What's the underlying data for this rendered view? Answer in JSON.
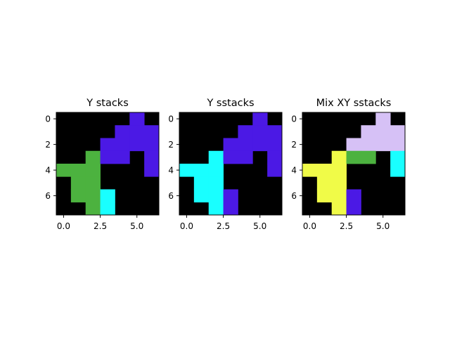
{
  "colors": {
    "background": "#000000",
    "green": "#4cb23f",
    "cyan": "#19ffff",
    "purple": "#4b19e5",
    "lavender": "#d6c1f6",
    "yellow": "#f0fb48"
  },
  "chart_data": [
    {
      "type": "heatmap",
      "title": "Y stacks",
      "xticks": [
        "0.0",
        "2.5",
        "5.0"
      ],
      "yticks": [
        "0",
        "2",
        "4",
        "6"
      ],
      "xlim": [
        -0.5,
        6.5
      ],
      "ylim": [
        7.5,
        -0.5
      ],
      "grid": false,
      "cells": [
        [
          0,
          0,
          0,
          0,
          0,
          "purple",
          0
        ],
        [
          0,
          0,
          0,
          0,
          "purple",
          "purple",
          "purple"
        ],
        [
          0,
          0,
          0,
          "purple",
          "purple",
          "purple",
          "purple"
        ],
        [
          0,
          0,
          "green",
          "purple",
          "purple",
          0,
          "purple"
        ],
        [
          "green",
          "green",
          "green",
          0,
          0,
          0,
          "purple"
        ],
        [
          0,
          "green",
          "green",
          0,
          0,
          0,
          0
        ],
        [
          0,
          "green",
          "green",
          "cyan",
          0,
          0,
          0
        ],
        [
          0,
          0,
          "green",
          "cyan",
          0,
          0,
          0
        ]
      ]
    },
    {
      "type": "heatmap",
      "title": "Y sstacks",
      "xticks": [
        "0.0",
        "2.5",
        "5.0"
      ],
      "yticks": [
        "0",
        "2",
        "4",
        "6"
      ],
      "xlim": [
        -0.5,
        6.5
      ],
      "ylim": [
        7.5,
        -0.5
      ],
      "grid": false,
      "cells": [
        [
          0,
          0,
          0,
          0,
          0,
          "purple",
          0
        ],
        [
          0,
          0,
          0,
          0,
          "purple",
          "purple",
          "purple"
        ],
        [
          0,
          0,
          0,
          "purple",
          "purple",
          "purple",
          "purple"
        ],
        [
          0,
          0,
          "cyan",
          "purple",
          "purple",
          0,
          "purple"
        ],
        [
          "cyan",
          "cyan",
          "cyan",
          0,
          0,
          0,
          "purple"
        ],
        [
          0,
          "cyan",
          "cyan",
          0,
          0,
          0,
          0
        ],
        [
          0,
          "cyan",
          "cyan",
          "purple",
          0,
          0,
          0
        ],
        [
          0,
          0,
          "cyan",
          "purple",
          0,
          0,
          0
        ]
      ]
    },
    {
      "type": "heatmap",
      "title": "Mix XY sstacks",
      "xticks": [
        "0.0",
        "2.5",
        "5.0"
      ],
      "yticks": [
        "0",
        "2",
        "4",
        "6"
      ],
      "xlim": [
        -0.5,
        6.5
      ],
      "ylim": [
        7.5,
        -0.5
      ],
      "grid": false,
      "cells": [
        [
          0,
          0,
          0,
          0,
          0,
          "lavender",
          0
        ],
        [
          0,
          0,
          0,
          0,
          "lavender",
          "lavender",
          "lavender"
        ],
        [
          0,
          0,
          0,
          "lavender",
          "lavender",
          "lavender",
          "lavender"
        ],
        [
          0,
          0,
          "yellow",
          "green",
          "green",
          0,
          "cyan"
        ],
        [
          "yellow",
          "yellow",
          "yellow",
          0,
          0,
          0,
          "cyan"
        ],
        [
          0,
          "yellow",
          "yellow",
          0,
          0,
          0,
          0
        ],
        [
          0,
          "yellow",
          "yellow",
          "purple",
          0,
          0,
          0
        ],
        [
          0,
          0,
          "yellow",
          "purple",
          0,
          0,
          0
        ]
      ]
    }
  ]
}
